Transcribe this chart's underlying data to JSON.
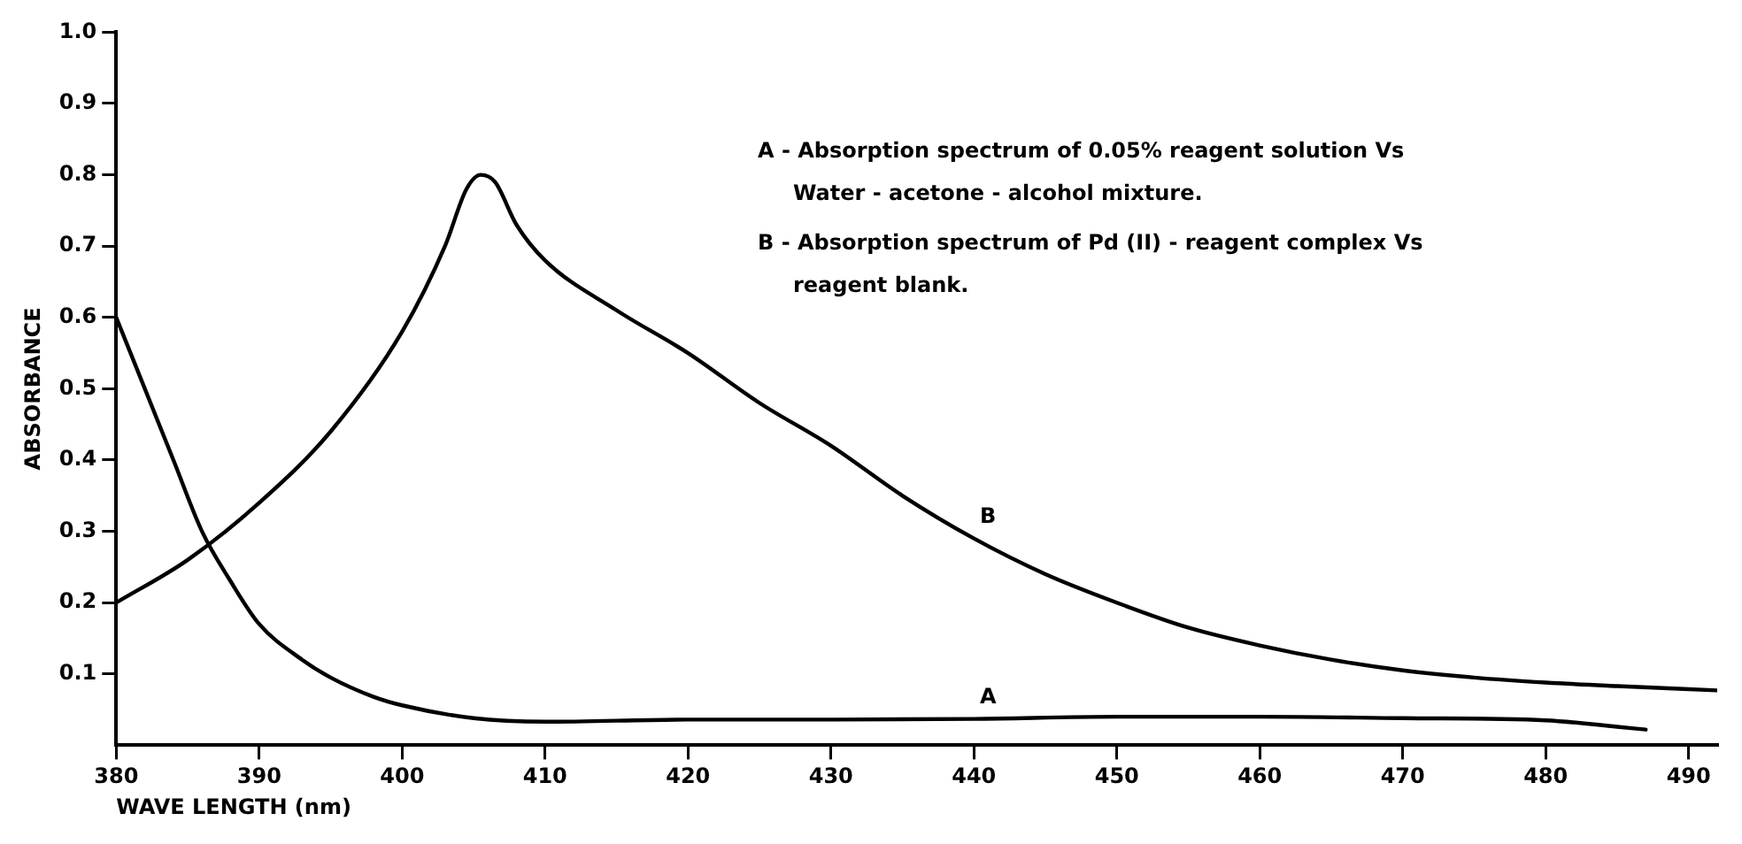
{
  "chart_data": {
    "type": "line",
    "xlabel": "WAVE LENGTH (nm)",
    "ylabel": "ABSORBANCE",
    "annotations": [
      "A - Absorption spectrum of 0.05% reagent solution Vs Water - acetone - alcohol mixture.",
      "B - Absorption spectrum of Pd (II) - reagent complex Vs reagent blank."
    ],
    "xlim": [
      380,
      492
    ],
    "xticks": [
      380,
      390,
      400,
      410,
      420,
      430,
      440,
      450,
      460,
      470,
      480,
      490
    ],
    "ylim": [
      0,
      1.0
    ],
    "yticks": [
      0.1,
      0.2,
      0.3,
      0.4,
      0.5,
      0.6,
      0.7,
      0.8,
      0.9,
      {
        "value": 1.0,
        "label": "1.0"
      }
    ],
    "grid": false,
    "legend": false,
    "marker": "none",
    "line_style": "solid",
    "series": [
      {
        "name": "A",
        "color": "#000000",
        "x": [
          380,
          382,
          384,
          386,
          388,
          390,
          393,
          395,
          398,
          400,
          405,
          410,
          420,
          430,
          440,
          450,
          460,
          470,
          480,
          485,
          487
        ],
        "values": [
          0.6,
          0.5,
          0.4,
          0.3,
          0.23,
          0.17,
          0.12,
          0.095,
          0.068,
          0.056,
          0.038,
          0.033,
          0.036,
          0.036,
          0.037,
          0.04,
          0.04,
          0.038,
          0.035,
          0.026,
          0.022
        ]
      },
      {
        "name": "B",
        "color": "#000000",
        "x": [
          380,
          385,
          390,
          395,
          400,
          403,
          404.5,
          405.5,
          406.5,
          408,
          410,
          415,
          420,
          425,
          430,
          435,
          440,
          445,
          450,
          455,
          460,
          465,
          470,
          475,
          480,
          485,
          492
        ],
        "values": [
          0.2,
          0.26,
          0.34,
          0.44,
          0.58,
          0.7,
          0.78,
          0.8,
          0.79,
          0.73,
          0.68,
          0.61,
          0.55,
          0.48,
          0.42,
          0.35,
          0.29,
          0.24,
          0.2,
          0.165,
          0.14,
          0.12,
          0.105,
          0.095,
          0.088,
          0.083,
          0.077
        ]
      }
    ]
  }
}
